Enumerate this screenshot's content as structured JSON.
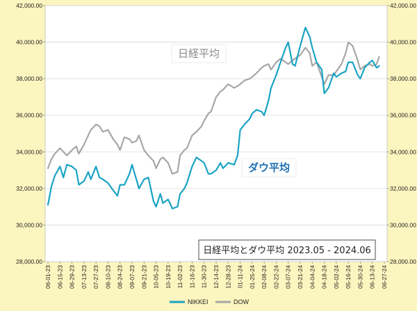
{
  "chart_data": {
    "type": "line",
    "title": "日経平均とダウ平均 2023.05 - 2024.06",
    "annotations": [
      "ダウ平均",
      "日経平均"
    ],
    "x_tick_labels": [
      "06-01-23",
      "06-15-23",
      "06-29-23",
      "07-13-23",
      "07-27-23",
      "08-10-23",
      "08-24-23",
      "09-07-23",
      "09-21-23",
      "10-05-23",
      "10-19-23",
      "11-02-23",
      "11-16-23",
      "11-30-23",
      "12-14-23",
      "12-28-23",
      "01-11-24",
      "01-25-24",
      "02-08-24",
      "02-22-24",
      "03-07-24",
      "03-21-24",
      "04-04-24",
      "04-18-24",
      "05-02-24",
      "05-16-24",
      "05-30-24",
      "06-13-24",
      "06-27-24"
    ],
    "y_tick_labels": [
      "28,000.00",
      "30,000.00",
      "32,000.00",
      "34,000.00",
      "36,000.00",
      "38,000.00",
      "40,000.00",
      "42,000.00"
    ],
    "ylim": [
      28000,
      42000
    ],
    "grid": true,
    "legend_position": "bottom",
    "colors": {
      "nikkei": "#1aa3c4",
      "dow": "#a6a6a6",
      "background": "#fbf5bf",
      "plot_background": "#ffffff"
    },
    "series": [
      {
        "name": "NIKKEI",
        "x": [
          "06-01-23",
          "06-05-23",
          "06-09-23",
          "06-15-23",
          "06-19-23",
          "06-23-23",
          "06-29-23",
          "07-04-23",
          "07-07-23",
          "07-13-23",
          "07-18-23",
          "07-21-23",
          "07-27-23",
          "07-31-23",
          "08-04-23",
          "08-10-23",
          "08-16-23",
          "08-21-23",
          "08-24-23",
          "08-29-23",
          "09-04-23",
          "09-07-23",
          "09-12-23",
          "09-15-23",
          "09-21-23",
          "09-26-23",
          "10-02-23",
          "10-05-23",
          "10-10-23",
          "10-13-23",
          "10-19-23",
          "10-24-23",
          "10-30-23",
          "11-02-23",
          "11-07-23",
          "11-10-23",
          "11-16-23",
          "11-21-23",
          "11-27-23",
          "11-30-23",
          "12-05-23",
          "12-08-23",
          "12-14-23",
          "12-19-23",
          "12-22-23",
          "12-28-23",
          "01-04-24",
          "01-08-24",
          "01-11-24",
          "01-16-24",
          "01-22-24",
          "01-25-24",
          "01-30-24",
          "02-05-24",
          "02-08-24",
          "02-13-24",
          "02-16-24",
          "02-22-24",
          "02-27-24",
          "03-04-24",
          "03-07-24",
          "03-12-24",
          "03-15-24",
          "03-21-24",
          "03-27-24",
          "04-01-24",
          "04-04-24",
          "04-09-24",
          "04-15-24",
          "04-18-24",
          "04-23-24",
          "04-29-24",
          "05-02-24",
          "05-08-24",
          "05-13-24",
          "05-16-24",
          "05-21-24",
          "05-27-24",
          "05-30-24",
          "06-04-24",
          "06-10-24",
          "06-13-24",
          "06-18-24",
          "06-21-24"
        ],
        "values": [
          31100,
          32100,
          32700,
          33200,
          32600,
          33300,
          33200,
          33000,
          32200,
          32400,
          32900,
          32500,
          33200,
          32600,
          32500,
          32300,
          31900,
          31600,
          32200,
          32200,
          32800,
          33300,
          32500,
          32000,
          32500,
          32600,
          31300,
          31000,
          31700,
          31200,
          31400,
          30900,
          31000,
          31700,
          32000,
          32300,
          33200,
          33700,
          33500,
          33400,
          32800,
          32800,
          33000,
          33400,
          33100,
          33400,
          33300,
          33800,
          35200,
          35500,
          35800,
          36100,
          36300,
          36200,
          36000,
          36800,
          37500,
          38200,
          38900,
          39700,
          40000,
          38800,
          38700,
          39800,
          40800,
          40300,
          39700,
          38900,
          38500,
          37200,
          37500,
          38300,
          38100,
          38300,
          38400,
          38900,
          38900,
          38200,
          38000,
          38600,
          38900,
          39000,
          38600,
          38700
        ]
      },
      {
        "name": "DOW",
        "x": [
          "06-01-23",
          "06-05-23",
          "06-09-23",
          "06-15-23",
          "06-19-23",
          "06-23-23",
          "06-29-23",
          "07-04-23",
          "07-07-23",
          "07-13-23",
          "07-18-23",
          "07-21-23",
          "07-27-23",
          "07-31-23",
          "08-04-23",
          "08-10-23",
          "08-16-23",
          "08-21-23",
          "08-24-23",
          "08-29-23",
          "09-04-23",
          "09-07-23",
          "09-12-23",
          "09-15-23",
          "09-21-23",
          "09-26-23",
          "10-02-23",
          "10-05-23",
          "10-10-23",
          "10-13-23",
          "10-19-23",
          "10-24-23",
          "10-30-23",
          "11-02-23",
          "11-07-23",
          "11-10-23",
          "11-16-23",
          "11-21-23",
          "11-27-23",
          "11-30-23",
          "12-05-23",
          "12-08-23",
          "12-14-23",
          "12-19-23",
          "12-22-23",
          "12-28-23",
          "01-04-24",
          "01-08-24",
          "01-11-24",
          "01-16-24",
          "01-22-24",
          "01-25-24",
          "01-30-24",
          "02-05-24",
          "02-08-24",
          "02-13-24",
          "02-16-24",
          "02-22-24",
          "02-27-24",
          "03-04-24",
          "03-07-24",
          "03-12-24",
          "03-15-24",
          "03-21-24",
          "03-27-24",
          "04-01-24",
          "04-04-24",
          "04-09-24",
          "04-15-24",
          "04-18-24",
          "04-23-24",
          "04-29-24",
          "05-02-24",
          "05-08-24",
          "05-13-24",
          "05-16-24",
          "05-21-24",
          "05-27-24",
          "05-30-24",
          "06-04-24",
          "06-10-24",
          "06-13-24",
          "06-18-24",
          "06-21-24"
        ],
        "values": [
          33100,
          33600,
          33900,
          34200,
          34000,
          33800,
          34100,
          34300,
          33900,
          34400,
          34900,
          35200,
          35500,
          35400,
          35100,
          35200,
          34700,
          34400,
          34100,
          34800,
          34700,
          34500,
          34600,
          34900,
          34100,
          33800,
          33500,
          33100,
          33600,
          33700,
          33400,
          32800,
          32900,
          33800,
          34100,
          34200,
          34900,
          35100,
          35400,
          35700,
          36100,
          36200,
          37000,
          37300,
          37400,
          37700,
          37500,
          37600,
          37700,
          37900,
          38000,
          38100,
          38300,
          38600,
          38700,
          38800,
          38500,
          38900,
          39100,
          38900,
          38800,
          39000,
          39100,
          39300,
          39700,
          39400,
          38700,
          38900,
          38100,
          37700,
          38200,
          38200,
          38400,
          38800,
          39400,
          40000,
          39800,
          39000,
          38500,
          38700,
          38800,
          38700,
          38800,
          39200
        ]
      }
    ]
  }
}
